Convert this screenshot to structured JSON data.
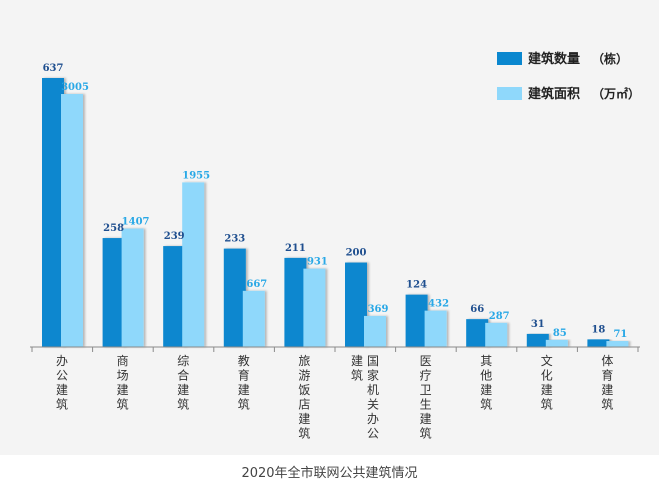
{
  "caption": "2020年全市联网公共建筑情况",
  "colors": {
    "series1": "#0a87cf",
    "series2": "#8fd8fb",
    "label1": "#1f4f8f",
    "label2": "#29a8e6",
    "background": "#f4f4f4",
    "axis": "#8a8a8a"
  },
  "chart_data": {
    "type": "bar",
    "title": "",
    "categories": [
      "办公建筑",
      "商场建筑",
      "综合建筑",
      "教育建筑",
      "旅游饭店建筑",
      "国家机关办公建筑",
      "医疗卫生建筑",
      "其他建筑",
      "文化建筑",
      "体育建筑"
    ],
    "category_lines": [
      [
        "办公建筑"
      ],
      [
        "商场建筑"
      ],
      [
        "综合建筑"
      ],
      [
        "教育建筑"
      ],
      [
        "旅游饭店建筑"
      ],
      [
        "建筑",
        "国家机关办公"
      ],
      [
        "医疗卫生建筑"
      ],
      [
        "其他建筑"
      ],
      [
        "文化建筑"
      ],
      [
        "体育建筑"
      ]
    ],
    "series": [
      {
        "name": "建筑数量",
        "unit": "（栋）",
        "values": [
          637,
          258,
          239,
          233,
          211,
          200,
          124,
          66,
          31,
          18
        ],
        "labels": [
          "637",
          "258",
          "239",
          "233",
          "211",
          "200",
          "124",
          "66",
          "31",
          "18"
        ]
      },
      {
        "name": "建筑面积",
        "unit": "（万㎡）",
        "values": [
          3005,
          1407,
          1955,
          667,
          931,
          369,
          432,
          287,
          85,
          71
        ],
        "labels": [
          "3005",
          "1407",
          "1955",
          "667",
          "931",
          "369",
          "432",
          "287",
          "85",
          "71"
        ]
      }
    ],
    "legend_position": "top-right",
    "grid": false
  }
}
